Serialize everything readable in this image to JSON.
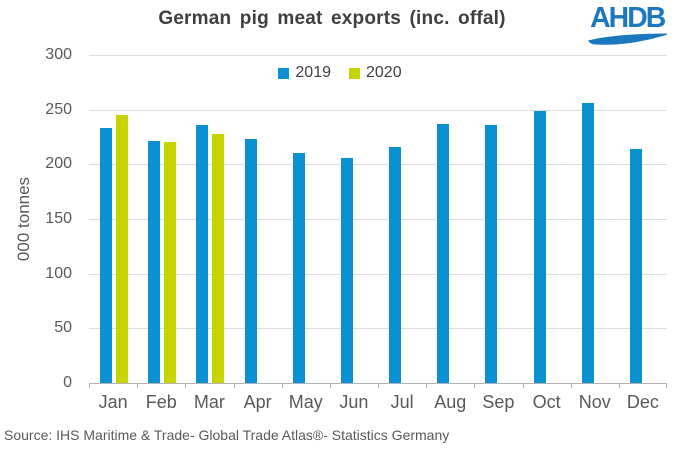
{
  "logo": {
    "text": "AHDB",
    "color": "#1b78be"
  },
  "chart_data": {
    "type": "bar",
    "title": "German pig meat exports (inc. offal)",
    "xlabel": "",
    "ylabel": "000 tonnes",
    "ylim": [
      0,
      300
    ],
    "ytick_interval": 50,
    "grid": true,
    "legend_position": "top-center",
    "categories": [
      "Jan",
      "Feb",
      "Mar",
      "Apr",
      "May",
      "Jun",
      "Jul",
      "Aug",
      "Sep",
      "Oct",
      "Nov",
      "Dec"
    ],
    "series": [
      {
        "name": "2019",
        "color": "#0a91d2",
        "values": [
          233,
          221,
          236,
          223,
          210,
          206,
          216,
          237,
          236,
          249,
          256,
          214
        ]
      },
      {
        "name": "2020",
        "color": "#c6d400",
        "values": [
          245,
          220,
          228,
          null,
          null,
          null,
          null,
          null,
          null,
          null,
          null,
          null
        ]
      }
    ],
    "source": "Source: IHS Maritime & Trade- Global Trade Atlas®- Statistics Germany"
  }
}
